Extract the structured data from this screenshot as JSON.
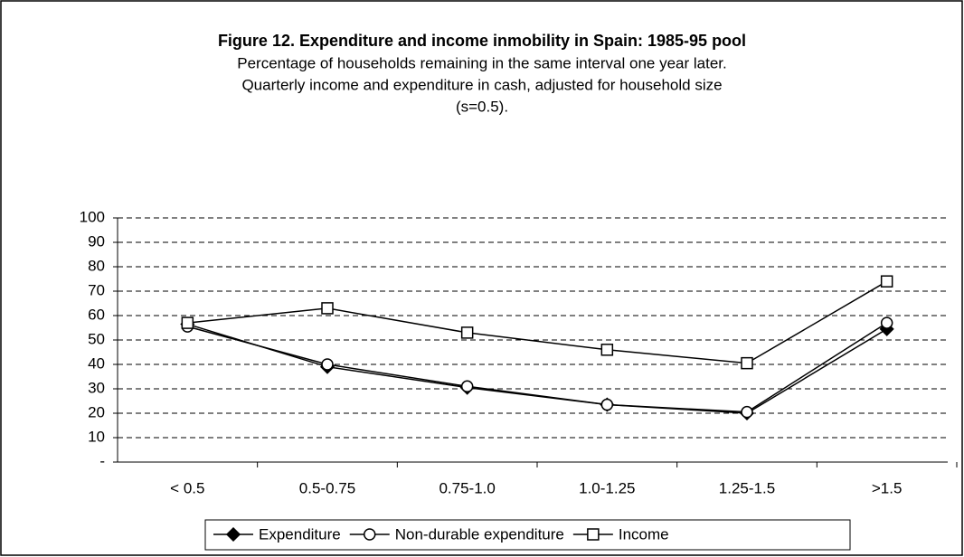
{
  "chart_data": {
    "type": "line",
    "title": "Figure 12. Expenditure and income inmobility in Spain: 1985-95 pool",
    "subtitle": [
      "Percentage of households remaining in the same interval one year later.",
      "Quarterly income and expenditure in cash, adjusted for household size",
      "(s=0.5)."
    ],
    "categories": [
      "< 0.5",
      "0.5-0.75",
      "0.75-1.0",
      "1.0-1.25",
      "1.25-1.5",
      ">1.5"
    ],
    "series": [
      {
        "name": "Expenditure",
        "color": "#000000",
        "marker": "diamond",
        "values": [
          56.5,
          39,
          30.5,
          23.5,
          20,
          54.5
        ]
      },
      {
        "name": "Non-durable expenditure",
        "color": "#000000",
        "marker": "circle",
        "values": [
          55.5,
          40,
          31,
          23.5,
          20.5,
          57
        ]
      },
      {
        "name": "Income",
        "color": "#000000",
        "marker": "square",
        "values": [
          57,
          63,
          53,
          46,
          40.5,
          74
        ]
      }
    ],
    "ylim": [
      0,
      100
    ],
    "yticks": [
      {
        "value": 0,
        "label": "-"
      },
      10,
      20,
      30,
      40,
      50,
      60,
      70,
      80,
      90,
      100
    ],
    "grid": true,
    "legend": "bottom"
  }
}
